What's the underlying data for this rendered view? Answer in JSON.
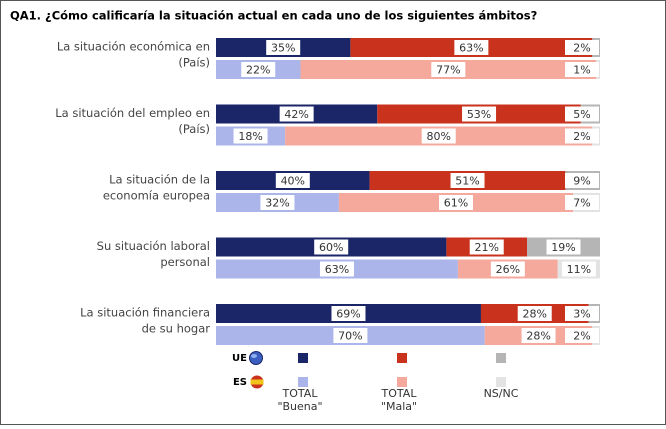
{
  "chart_data": {
    "type": "stacked-bar-horizontal",
    "title": "QA1. ¿Cómo calificaría la situación actual en cada uno de los siguientes ámbitos?",
    "categories": [
      [
        "La situación económica en",
        "(País)"
      ],
      [
        "La situación del empleo en",
        "(País)"
      ],
      [
        "La situación de la",
        "economía europea"
      ],
      [
        "Su situación laboral",
        "personal"
      ],
      [
        "La situación financiera",
        "de su hogar"
      ]
    ],
    "segments": [
      [
        "TOTAL",
        "\"Buena\""
      ],
      [
        "TOTAL",
        "\"Mala\""
      ],
      [
        "NS/NC"
      ]
    ],
    "xlim": [
      0,
      100
    ],
    "groups": [
      {
        "name": "UE",
        "colors": [
          "#1b2668",
          "#c9321d",
          "#b5b5b5"
        ],
        "values": [
          [
            35,
            63,
            2
          ],
          [
            42,
            53,
            5
          ],
          [
            40,
            51,
            9
          ],
          [
            60,
            21,
            19
          ],
          [
            69,
            28,
            3
          ]
        ],
        "value_labels": [
          [
            "35%",
            "63%",
            "2%"
          ],
          [
            "42%",
            "53%",
            "5%"
          ],
          [
            "40%",
            "51%",
            "9%"
          ],
          [
            "60%",
            "21%",
            "19%"
          ],
          [
            "69%",
            "28%",
            "3%"
          ]
        ]
      },
      {
        "name": "ES",
        "colors": [
          "#abb5ea",
          "#f5a99d",
          "#e3e3e3"
        ],
        "values": [
          [
            22,
            77,
            1
          ],
          [
            18,
            80,
            2
          ],
          [
            32,
            61,
            7
          ],
          [
            63,
            26,
            11
          ],
          [
            70,
            28,
            2
          ]
        ],
        "value_labels": [
          [
            "22%",
            "77%",
            "1%"
          ],
          [
            "18%",
            "80%",
            "2%"
          ],
          [
            "32%",
            "61%",
            "7%"
          ],
          [
            "63%",
            "26%",
            "11%"
          ],
          [
            "70%",
            "28%",
            "2%"
          ]
        ]
      }
    ]
  }
}
